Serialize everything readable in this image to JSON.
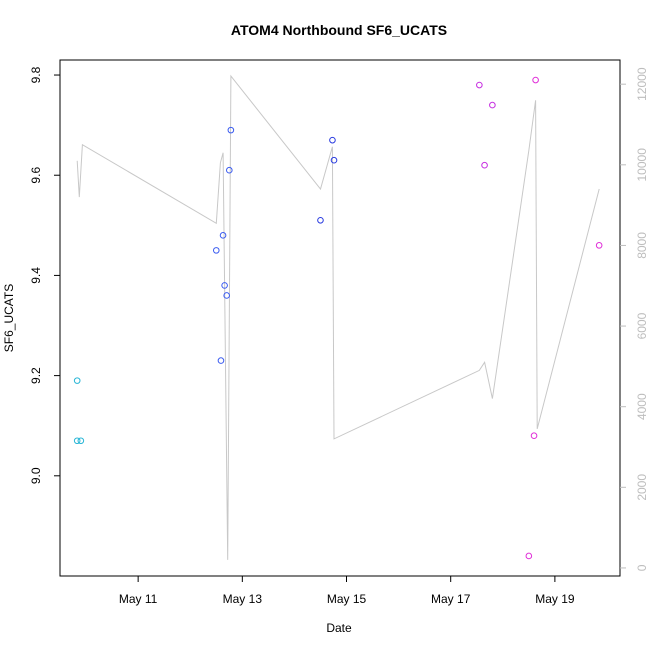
{
  "chart_data": {
    "type": "scatter",
    "title": "ATOM4 Northbound SF6_UCATS",
    "xlabel": "Date",
    "ylabel": "SF6_UCATS",
    "x_ticks": [
      "May 11",
      "May 13",
      "May 15",
      "May 17",
      "May 19"
    ],
    "x_tick_days": [
      11,
      13,
      15,
      17,
      19
    ],
    "xlim_days": [
      9.5,
      20.25
    ],
    "ylim": [
      8.8,
      9.83
    ],
    "y_ticks": [
      9.0,
      9.2,
      9.4,
      9.6,
      9.8
    ],
    "y_tick_labels": [
      "9.0",
      "9.2",
      "9.4",
      "9.6",
      "9.8"
    ],
    "y2lim": [
      -200,
      12600
    ],
    "y2_ticks": [
      0,
      2000,
      4000,
      6000,
      8000,
      10000,
      12000
    ],
    "y2_tick_labels": [
      "0",
      "2000",
      "4000",
      "6000",
      "8000",
      "10000",
      "12000"
    ],
    "y2_color": "#bdbdbd",
    "grid": false,
    "points": [
      {
        "day": 9.83,
        "value": 9.19,
        "color": "#29b6d6"
      },
      {
        "day": 9.83,
        "value": 9.07,
        "color": "#29b6d6"
      },
      {
        "day": 9.9,
        "value": 9.07,
        "color": "#29b6d6"
      },
      {
        "day": 12.5,
        "value": 9.45,
        "color": "#3b5cf0"
      },
      {
        "day": 12.59,
        "value": 9.23,
        "color": "#3b5cf0"
      },
      {
        "day": 12.63,
        "value": 9.48,
        "color": "#3b5cf0"
      },
      {
        "day": 12.66,
        "value": 9.38,
        "color": "#3b5cf0"
      },
      {
        "day": 12.7,
        "value": 9.36,
        "color": "#3b5cf0"
      },
      {
        "day": 12.75,
        "value": 9.61,
        "color": "#3b5cf0"
      },
      {
        "day": 12.78,
        "value": 9.69,
        "color": "#3b5cf0"
      },
      {
        "day": 14.5,
        "value": 9.51,
        "color": "#2a3ce0"
      },
      {
        "day": 14.73,
        "value": 9.67,
        "color": "#2a3ce0"
      },
      {
        "day": 14.76,
        "value": 9.63,
        "color": "#2a3ce0"
      },
      {
        "day": 17.55,
        "value": 9.78,
        "color": "#c62ee0"
      },
      {
        "day": 17.65,
        "value": 9.62,
        "color": "#c62ee0"
      },
      {
        "day": 17.8,
        "value": 9.74,
        "color": "#c62ee0"
      },
      {
        "day": 18.5,
        "value": 8.84,
        "color": "#e02ed8"
      },
      {
        "day": 18.6,
        "value": 9.08,
        "color": "#e02ed8"
      },
      {
        "day": 18.63,
        "value": 9.79,
        "color": "#e02ed8"
      },
      {
        "day": 19.85,
        "value": 9.46,
        "color": "#e02ed8"
      }
    ],
    "secondary_series": {
      "color": "#c8c8c8",
      "points": [
        {
          "day": 9.83,
          "value": 10100
        },
        {
          "day": 9.87,
          "value": 9200
        },
        {
          "day": 9.93,
          "value": 10500
        },
        {
          "day": 12.5,
          "value": 8550
        },
        {
          "day": 12.58,
          "value": 10050
        },
        {
          "day": 12.63,
          "value": 10300
        },
        {
          "day": 12.72,
          "value": 200
        },
        {
          "day": 12.78,
          "value": 12200
        },
        {
          "day": 14.5,
          "value": 9400
        },
        {
          "day": 14.73,
          "value": 10450
        },
        {
          "day": 14.76,
          "value": 3200
        },
        {
          "day": 17.55,
          "value": 4900
        },
        {
          "day": 17.65,
          "value": 5100
        },
        {
          "day": 17.8,
          "value": 4200
        },
        {
          "day": 18.5,
          "value": 10350
        },
        {
          "day": 18.63,
          "value": 11600
        },
        {
          "day": 18.66,
          "value": 3450
        },
        {
          "day": 19.85,
          "value": 9400
        }
      ]
    }
  }
}
